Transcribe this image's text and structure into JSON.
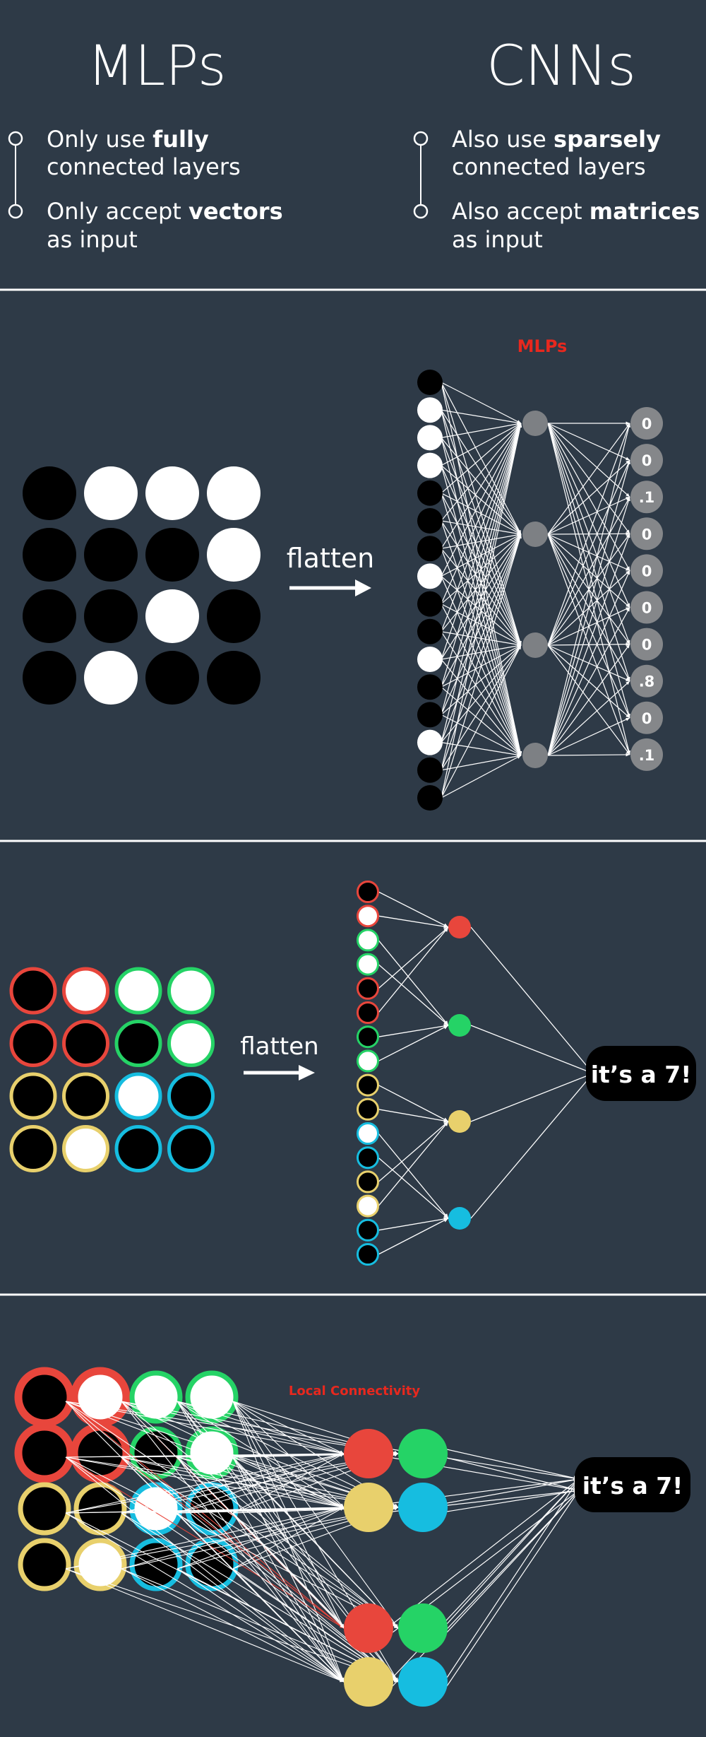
{
  "header": {
    "left_title": "MLPs",
    "right_title": "CNNs",
    "left_bullets": [
      {
        "pre": "Only use ",
        "bold": "fully",
        "line2": "connected layers"
      },
      {
        "pre": "Only accept ",
        "bold": "vectors",
        "line2": "as input"
      }
    ],
    "right_bullets": [
      {
        "pre": "Also use ",
        "bold": "sparsely",
        "line2": "connected layers"
      },
      {
        "pre": "Also accept ",
        "bold": "matrices",
        "line2": "as input"
      }
    ]
  },
  "panel_mlp": {
    "label": "MLPs",
    "label_color": "#e8281e",
    "flatten_label": "flatten",
    "grid": [
      [
        "black",
        "white",
        "white",
        "white"
      ],
      [
        "black",
        "black",
        "black",
        "white"
      ],
      [
        "black",
        "black",
        "white",
        "black"
      ],
      [
        "black",
        "white",
        "black",
        "black"
      ]
    ],
    "output_values": [
      "0",
      "0",
      ".1",
      "0",
      "0",
      "0",
      "0",
      ".8",
      "0",
      ".1"
    ]
  },
  "panel_sparse": {
    "flatten_label": "flatten",
    "result_label": "it’s a 7!",
    "region_colors": {
      "red": "#e8463c",
      "green": "#25d366",
      "yellow": "#e8d06c",
      "blue": "#16bde0"
    }
  },
  "panel_local": {
    "label": "Local Connectivity",
    "label_color": "#e8281e",
    "result_label": "it’s a 7!"
  },
  "colors": {
    "background": "#2e3a47",
    "hidden_gray": "#7d8084",
    "output_gray": "#85878a"
  }
}
